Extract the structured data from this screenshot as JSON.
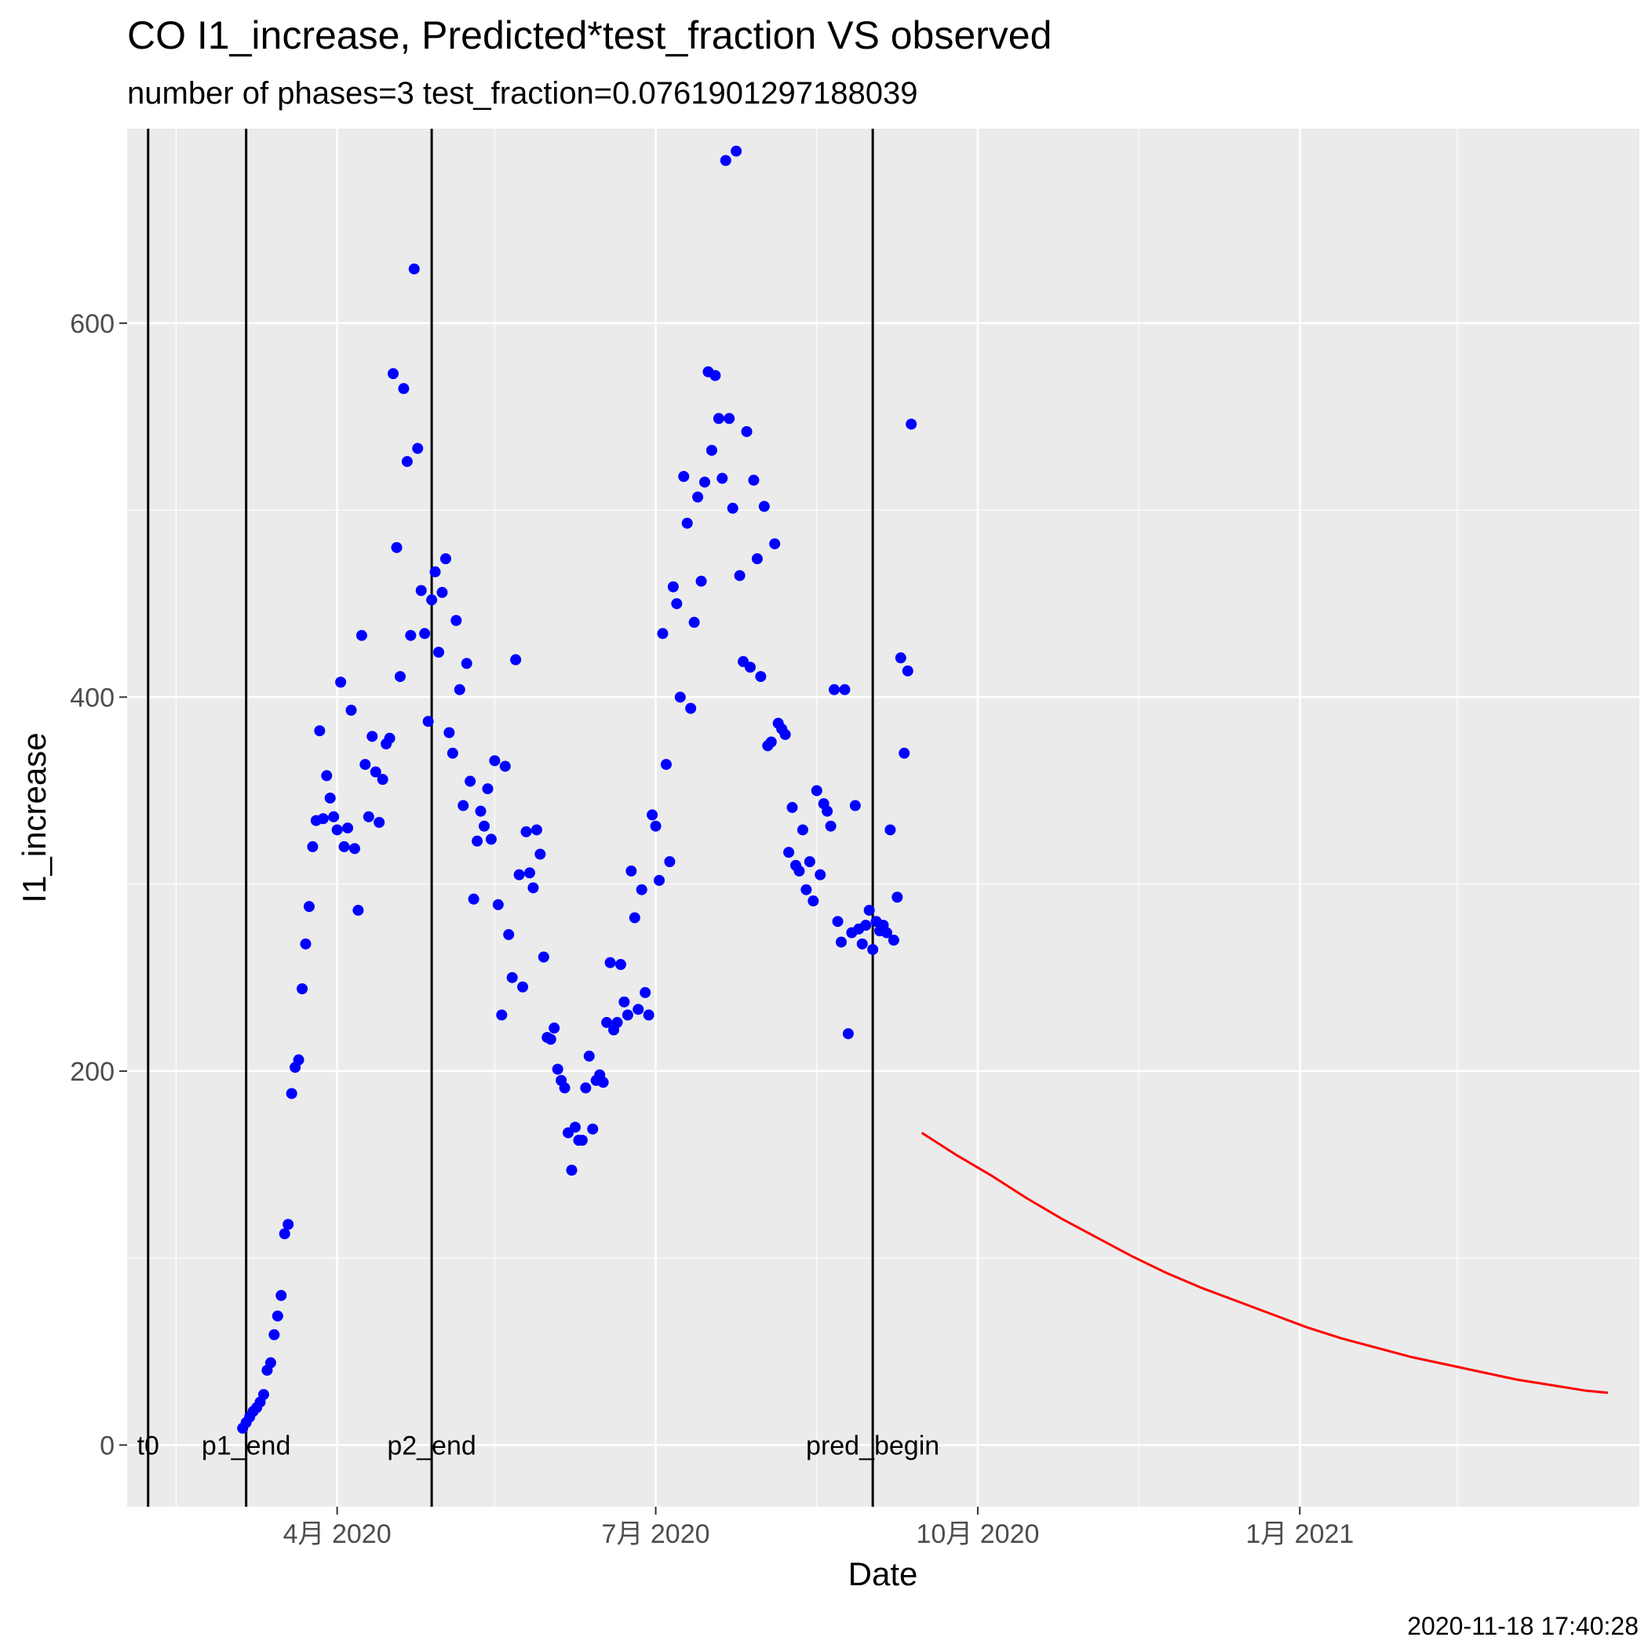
{
  "chart_data": {
    "type": "scatter",
    "title": "CO I1_increase, Predicted*test_fraction VS observed",
    "subtitle": "number of phases=3   test_fraction=0.0761901297188039",
    "xlabel": "Date",
    "ylabel": "I1_increase",
    "caption": "2020-11-18 17:40:28",
    "xlim": [
      "2020-02-01",
      "2021-04-08"
    ],
    "ylim": [
      -33,
      704
    ],
    "grid": true,
    "x_ticks": [
      {
        "date": "2020-04-01",
        "label": "4月 2020"
      },
      {
        "date": "2020-07-01",
        "label": "7月 2020"
      },
      {
        "date": "2020-10-01",
        "label": "10月 2020"
      },
      {
        "date": "2021-01-01",
        "label": "1月 2021"
      }
    ],
    "x_minor_ticks": [
      "2020-02-15",
      "2020-05-16",
      "2020-08-16",
      "2020-11-16",
      "2021-02-15"
    ],
    "y_ticks": [
      0,
      200,
      400,
      600
    ],
    "y_minor_ticks": [
      100,
      300,
      500
    ],
    "vertical_lines": [
      {
        "date": "2020-02-07",
        "label": "t0"
      },
      {
        "date": "2020-03-06",
        "label": "p1_end"
      },
      {
        "date": "2020-04-28",
        "label": "p2_end"
      },
      {
        "date": "2020-09-01",
        "label": "pred_begin"
      }
    ],
    "series": [
      {
        "type": "points",
        "color": "#0000ff",
        "points": [
          {
            "x": "2020-03-05",
            "y": 9
          },
          {
            "x": "2020-03-06",
            "y": 12
          },
          {
            "x": "2020-03-07",
            "y": 15
          },
          {
            "x": "2020-03-08",
            "y": 18
          },
          {
            "x": "2020-03-09",
            "y": 20
          },
          {
            "x": "2020-03-10",
            "y": 23
          },
          {
            "x": "2020-03-11",
            "y": 27
          },
          {
            "x": "2020-03-12",
            "y": 40
          },
          {
            "x": "2020-03-13",
            "y": 44
          },
          {
            "x": "2020-03-14",
            "y": 59
          },
          {
            "x": "2020-03-15",
            "y": 69
          },
          {
            "x": "2020-03-16",
            "y": 80
          },
          {
            "x": "2020-03-17",
            "y": 113
          },
          {
            "x": "2020-03-18",
            "y": 118
          },
          {
            "x": "2020-03-19",
            "y": 188
          },
          {
            "x": "2020-03-20",
            "y": 202
          },
          {
            "x": "2020-03-21",
            "y": 206
          },
          {
            "x": "2020-03-22",
            "y": 244
          },
          {
            "x": "2020-03-23",
            "y": 268
          },
          {
            "x": "2020-03-24",
            "y": 288
          },
          {
            "x": "2020-03-25",
            "y": 320
          },
          {
            "x": "2020-03-26",
            "y": 334
          },
          {
            "x": "2020-03-27",
            "y": 382
          },
          {
            "x": "2020-03-28",
            "y": 335
          },
          {
            "x": "2020-03-29",
            "y": 358
          },
          {
            "x": "2020-03-30",
            "y": 346
          },
          {
            "x": "2020-03-31",
            "y": 336
          },
          {
            "x": "2020-04-01",
            "y": 329
          },
          {
            "x": "2020-04-02",
            "y": 408
          },
          {
            "x": "2020-04-03",
            "y": 320
          },
          {
            "x": "2020-04-04",
            "y": 330
          },
          {
            "x": "2020-04-05",
            "y": 393
          },
          {
            "x": "2020-04-06",
            "y": 319
          },
          {
            "x": "2020-04-07",
            "y": 286
          },
          {
            "x": "2020-04-08",
            "y": 433
          },
          {
            "x": "2020-04-09",
            "y": 364
          },
          {
            "x": "2020-04-10",
            "y": 336
          },
          {
            "x": "2020-04-11",
            "y": 379
          },
          {
            "x": "2020-04-12",
            "y": 360
          },
          {
            "x": "2020-04-13",
            "y": 333
          },
          {
            "x": "2020-04-14",
            "y": 356
          },
          {
            "x": "2020-04-15",
            "y": 375
          },
          {
            "x": "2020-04-16",
            "y": 378
          },
          {
            "x": "2020-04-17",
            "y": 573
          },
          {
            "x": "2020-04-18",
            "y": 480
          },
          {
            "x": "2020-04-19",
            "y": 411
          },
          {
            "x": "2020-04-20",
            "y": 565
          },
          {
            "x": "2020-04-21",
            "y": 526
          },
          {
            "x": "2020-04-22",
            "y": 433
          },
          {
            "x": "2020-04-23",
            "y": 629
          },
          {
            "x": "2020-04-24",
            "y": 533
          },
          {
            "x": "2020-04-25",
            "y": 457
          },
          {
            "x": "2020-04-26",
            "y": 434
          },
          {
            "x": "2020-04-27",
            "y": 387
          },
          {
            "x": "2020-04-28",
            "y": 452
          },
          {
            "x": "2020-04-29",
            "y": 467
          },
          {
            "x": "2020-04-30",
            "y": 424
          },
          {
            "x": "2020-05-01",
            "y": 456
          },
          {
            "x": "2020-05-02",
            "y": 474
          },
          {
            "x": "2020-05-03",
            "y": 381
          },
          {
            "x": "2020-05-04",
            "y": 370
          },
          {
            "x": "2020-05-05",
            "y": 441
          },
          {
            "x": "2020-05-06",
            "y": 404
          },
          {
            "x": "2020-05-07",
            "y": 342
          },
          {
            "x": "2020-05-08",
            "y": 418
          },
          {
            "x": "2020-05-09",
            "y": 355
          },
          {
            "x": "2020-05-10",
            "y": 292
          },
          {
            "x": "2020-05-11",
            "y": 323
          },
          {
            "x": "2020-05-12",
            "y": 339
          },
          {
            "x": "2020-05-13",
            "y": 331
          },
          {
            "x": "2020-05-14",
            "y": 351
          },
          {
            "x": "2020-05-15",
            "y": 324
          },
          {
            "x": "2020-05-16",
            "y": 366
          },
          {
            "x": "2020-05-17",
            "y": 289
          },
          {
            "x": "2020-05-18",
            "y": 230
          },
          {
            "x": "2020-05-19",
            "y": 363
          },
          {
            "x": "2020-05-20",
            "y": 273
          },
          {
            "x": "2020-05-21",
            "y": 250
          },
          {
            "x": "2020-05-22",
            "y": 420
          },
          {
            "x": "2020-05-23",
            "y": 305
          },
          {
            "x": "2020-05-24",
            "y": 245
          },
          {
            "x": "2020-05-25",
            "y": 328
          },
          {
            "x": "2020-05-26",
            "y": 306
          },
          {
            "x": "2020-05-27",
            "y": 298
          },
          {
            "x": "2020-05-28",
            "y": 329
          },
          {
            "x": "2020-05-29",
            "y": 316
          },
          {
            "x": "2020-05-30",
            "y": 261
          },
          {
            "x": "2020-05-31",
            "y": 218
          },
          {
            "x": "2020-06-01",
            "y": 217
          },
          {
            "x": "2020-06-02",
            "y": 223
          },
          {
            "x": "2020-06-03",
            "y": 201
          },
          {
            "x": "2020-06-04",
            "y": 195
          },
          {
            "x": "2020-06-05",
            "y": 191
          },
          {
            "x": "2020-06-06",
            "y": 167
          },
          {
            "x": "2020-06-07",
            "y": 147
          },
          {
            "x": "2020-06-08",
            "y": 170
          },
          {
            "x": "2020-06-09",
            "y": 163
          },
          {
            "x": "2020-06-10",
            "y": 163
          },
          {
            "x": "2020-06-11",
            "y": 191
          },
          {
            "x": "2020-06-12",
            "y": 208
          },
          {
            "x": "2020-06-13",
            "y": 169
          },
          {
            "x": "2020-06-14",
            "y": 195
          },
          {
            "x": "2020-06-15",
            "y": 198
          },
          {
            "x": "2020-06-16",
            "y": 194
          },
          {
            "x": "2020-06-17",
            "y": 226
          },
          {
            "x": "2020-06-18",
            "y": 258
          },
          {
            "x": "2020-06-19",
            "y": 222
          },
          {
            "x": "2020-06-20",
            "y": 226
          },
          {
            "x": "2020-06-21",
            "y": 257
          },
          {
            "x": "2020-06-22",
            "y": 237
          },
          {
            "x": "2020-06-23",
            "y": 230
          },
          {
            "x": "2020-06-24",
            "y": 307
          },
          {
            "x": "2020-06-25",
            "y": 282
          },
          {
            "x": "2020-06-26",
            "y": 233
          },
          {
            "x": "2020-06-27",
            "y": 297
          },
          {
            "x": "2020-06-28",
            "y": 242
          },
          {
            "x": "2020-06-29",
            "y": 230
          },
          {
            "x": "2020-06-30",
            "y": 337
          },
          {
            "x": "2020-07-01",
            "y": 331
          },
          {
            "x": "2020-07-02",
            "y": 302
          },
          {
            "x": "2020-07-03",
            "y": 434
          },
          {
            "x": "2020-07-04",
            "y": 364
          },
          {
            "x": "2020-07-05",
            "y": 312
          },
          {
            "x": "2020-07-06",
            "y": 459
          },
          {
            "x": "2020-07-07",
            "y": 450
          },
          {
            "x": "2020-07-08",
            "y": 400
          },
          {
            "x": "2020-07-09",
            "y": 518
          },
          {
            "x": "2020-07-10",
            "y": 493
          },
          {
            "x": "2020-07-11",
            "y": 394
          },
          {
            "x": "2020-07-12",
            "y": 440
          },
          {
            "x": "2020-07-13",
            "y": 507
          },
          {
            "x": "2020-07-14",
            "y": 462
          },
          {
            "x": "2020-07-15",
            "y": 515
          },
          {
            "x": "2020-07-16",
            "y": 574
          },
          {
            "x": "2020-07-17",
            "y": 532
          },
          {
            "x": "2020-07-18",
            "y": 572
          },
          {
            "x": "2020-07-19",
            "y": 549
          },
          {
            "x": "2020-07-20",
            "y": 517
          },
          {
            "x": "2020-07-21",
            "y": 687
          },
          {
            "x": "2020-07-22",
            "y": 549
          },
          {
            "x": "2020-07-23",
            "y": 501
          },
          {
            "x": "2020-07-24",
            "y": 692
          },
          {
            "x": "2020-07-25",
            "y": 465
          },
          {
            "x": "2020-07-26",
            "y": 419
          },
          {
            "x": "2020-07-27",
            "y": 542
          },
          {
            "x": "2020-07-28",
            "y": 416
          },
          {
            "x": "2020-07-29",
            "y": 516
          },
          {
            "x": "2020-07-30",
            "y": 474
          },
          {
            "x": "2020-07-31",
            "y": 411
          },
          {
            "x": "2020-08-01",
            "y": 502
          },
          {
            "x": "2020-08-02",
            "y": 374
          },
          {
            "x": "2020-08-03",
            "y": 376
          },
          {
            "x": "2020-08-04",
            "y": 482
          },
          {
            "x": "2020-08-05",
            "y": 386
          },
          {
            "x": "2020-08-06",
            "y": 383
          },
          {
            "x": "2020-08-07",
            "y": 380
          },
          {
            "x": "2020-08-08",
            "y": 317
          },
          {
            "x": "2020-08-09",
            "y": 341
          },
          {
            "x": "2020-08-10",
            "y": 310
          },
          {
            "x": "2020-08-11",
            "y": 307
          },
          {
            "x": "2020-08-12",
            "y": 329
          },
          {
            "x": "2020-08-13",
            "y": 297
          },
          {
            "x": "2020-08-14",
            "y": 312
          },
          {
            "x": "2020-08-15",
            "y": 291
          },
          {
            "x": "2020-08-16",
            "y": 350
          },
          {
            "x": "2020-08-17",
            "y": 305
          },
          {
            "x": "2020-08-18",
            "y": 343
          },
          {
            "x": "2020-08-19",
            "y": 339
          },
          {
            "x": "2020-08-20",
            "y": 331
          },
          {
            "x": "2020-08-21",
            "y": 404
          },
          {
            "x": "2020-08-22",
            "y": 280
          },
          {
            "x": "2020-08-23",
            "y": 269
          },
          {
            "x": "2020-08-24",
            "y": 404
          },
          {
            "x": "2020-08-25",
            "y": 220
          },
          {
            "x": "2020-08-26",
            "y": 274
          },
          {
            "x": "2020-08-27",
            "y": 342
          },
          {
            "x": "2020-08-28",
            "y": 276
          },
          {
            "x": "2020-08-29",
            "y": 268
          },
          {
            "x": "2020-08-30",
            "y": 278
          },
          {
            "x": "2020-08-31",
            "y": 286
          },
          {
            "x": "2020-09-01",
            "y": 265
          },
          {
            "x": "2020-09-02",
            "y": 280
          },
          {
            "x": "2020-09-03",
            "y": 275
          },
          {
            "x": "2020-09-04",
            "y": 278
          },
          {
            "x": "2020-09-05",
            "y": 274
          },
          {
            "x": "2020-09-06",
            "y": 329
          },
          {
            "x": "2020-09-07",
            "y": 270
          },
          {
            "x": "2020-09-08",
            "y": 293
          },
          {
            "x": "2020-09-09",
            "y": 421
          },
          {
            "x": "2020-09-10",
            "y": 370
          },
          {
            "x": "2020-09-11",
            "y": 414
          },
          {
            "x": "2020-09-12",
            "y": 546
          }
        ]
      },
      {
        "type": "line",
        "color": "#ff0000",
        "points": [
          {
            "x": "2020-09-15",
            "y": 167
          },
          {
            "x": "2020-09-25",
            "y": 155
          },
          {
            "x": "2020-10-05",
            "y": 144
          },
          {
            "x": "2020-10-15",
            "y": 132
          },
          {
            "x": "2020-10-25",
            "y": 121
          },
          {
            "x": "2020-11-04",
            "y": 111
          },
          {
            "x": "2020-11-14",
            "y": 101
          },
          {
            "x": "2020-11-24",
            "y": 92
          },
          {
            "x": "2020-12-04",
            "y": 84
          },
          {
            "x": "2020-12-14",
            "y": 77
          },
          {
            "x": "2020-12-24",
            "y": 70
          },
          {
            "x": "2021-01-03",
            "y": 63
          },
          {
            "x": "2021-01-13",
            "y": 57
          },
          {
            "x": "2021-01-23",
            "y": 52
          },
          {
            "x": "2021-02-02",
            "y": 47
          },
          {
            "x": "2021-02-12",
            "y": 43
          },
          {
            "x": "2021-02-22",
            "y": 39
          },
          {
            "x": "2021-03-04",
            "y": 35
          },
          {
            "x": "2021-03-14",
            "y": 32
          },
          {
            "x": "2021-03-24",
            "y": 29
          },
          {
            "x": "2021-03-30",
            "y": 28
          }
        ]
      }
    ]
  }
}
